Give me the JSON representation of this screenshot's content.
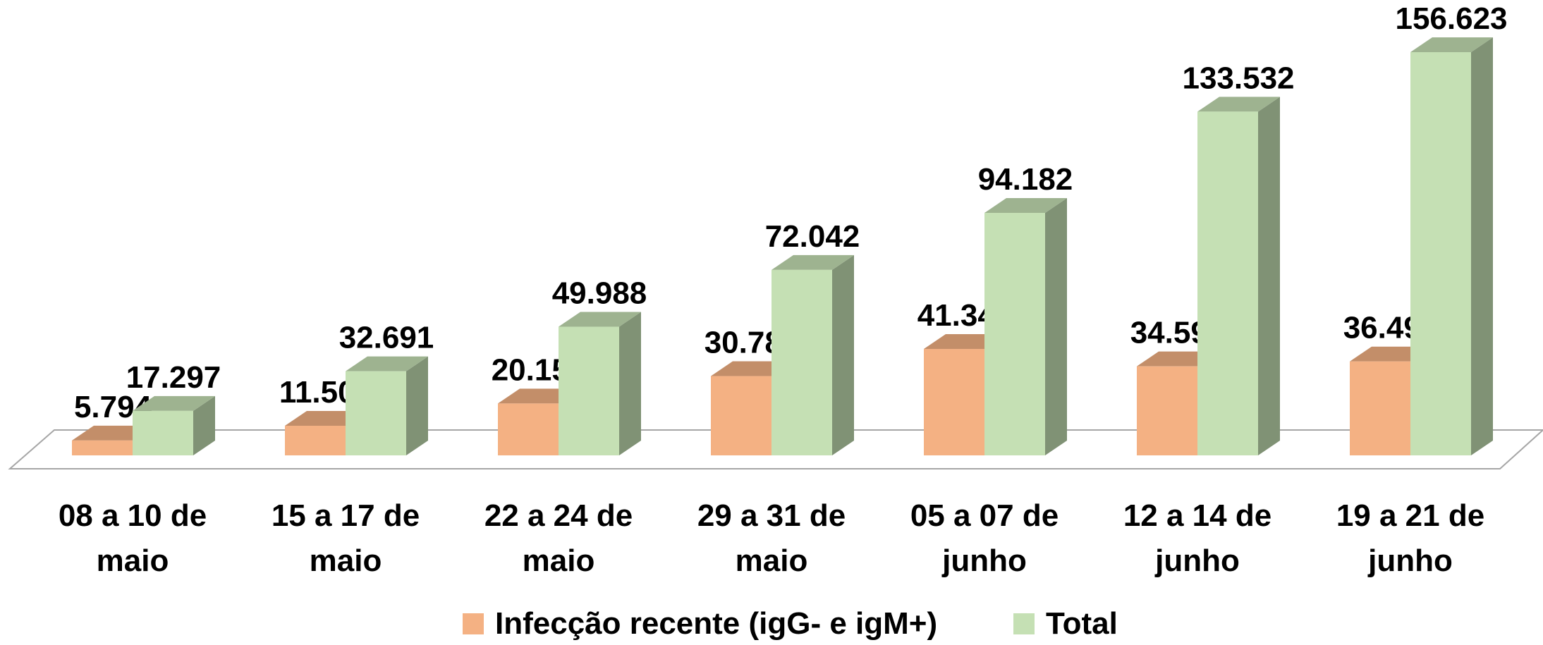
{
  "chart_data": {
    "type": "bar3d",
    "categories": [
      "08 a 10 de maio",
      "15 a 17 de maio",
      "22 a 24 de maio",
      "29 a 31 de maio",
      "05 a 07 de junho",
      "12 a 14 de junho",
      "19 a 21 de junho"
    ],
    "series": [
      {
        "name": "Infecção recente (igG- e igM+)",
        "color": "#f4b183",
        "values": [
          5794,
          11502,
          20151,
          30788,
          41340,
          34594,
          36496
        ],
        "value_labels": [
          "5.794",
          "11.502",
          "20.151",
          "30.788",
          "41.340",
          "34.594",
          "36.496"
        ]
      },
      {
        "name": "Total",
        "color": "#c5e0b4",
        "values": [
          17297,
          32691,
          49988,
          72042,
          94182,
          133532,
          156623
        ],
        "value_labels": [
          "17.297",
          "32.691",
          "49.988",
          "72.042",
          "94.182",
          "133.532",
          "156.623"
        ]
      }
    ],
    "legend": "bottom"
  }
}
